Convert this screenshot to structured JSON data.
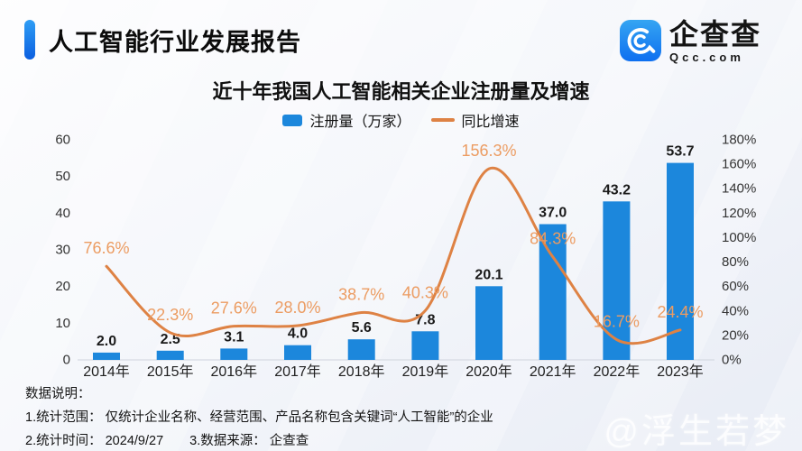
{
  "header": {
    "title": "人工智能行业发展报告"
  },
  "logo": {
    "name": "企查查",
    "domain": "Qcc.com",
    "icon": "qcc-swirl-icon"
  },
  "chart_data": {
    "type": "bar+line",
    "title": "近十年我国人工智能相关企业注册量及增速",
    "categories": [
      "2014年",
      "2015年",
      "2016年",
      "2017年",
      "2018年",
      "2019年",
      "2020年",
      "2021年",
      "2022年",
      "2023年"
    ],
    "series": [
      {
        "name": "注册量（万家）",
        "type": "bar",
        "axis": "left",
        "color": "#1C87DC",
        "values": [
          2.0,
          2.5,
          3.1,
          4.0,
          5.6,
          7.8,
          20.1,
          37.0,
          43.2,
          53.7
        ],
        "labels": [
          "2.0",
          "2.5",
          "3.1",
          "4.0",
          "5.6",
          "7.8",
          "20.1",
          "37.0",
          "43.2",
          "53.7"
        ]
      },
      {
        "name": "同比增速",
        "type": "line",
        "axis": "right",
        "color": "#DE8244",
        "label_color": "#EC9C62",
        "values": [
          76.6,
          22.3,
          27.6,
          28.0,
          38.7,
          40.3,
          156.3,
          84.3,
          16.7,
          24.4
        ],
        "labels": [
          "76.6%",
          "22.3%",
          "27.6%",
          "28.0%",
          "38.7%",
          "40.3%",
          "156.3%",
          "84.3%",
          "16.7%",
          "24.4%"
        ]
      }
    ],
    "left_axis": {
      "min": 0,
      "max": 60,
      "tick_step": 10,
      "ticks": [
        "0",
        "10",
        "20",
        "30",
        "40",
        "50",
        "60"
      ]
    },
    "right_axis": {
      "min": 0,
      "max": 180,
      "tick_step": 20,
      "ticks": [
        "0%",
        "20%",
        "40%",
        "60%",
        "80%",
        "100%",
        "120%",
        "140%",
        "160%",
        "180%"
      ]
    },
    "legend_position": "top-center",
    "grid": false
  },
  "footer": {
    "heading": "数据说明：",
    "lines": [
      "1.统计范围： 仅统计企业名称、经营范围、产品名称包含关键词“人工智能”的企业",
      "2.统计时间： 2024/9/27　　3.数据来源： 企查查"
    ]
  },
  "watermark": "@浮生若梦"
}
